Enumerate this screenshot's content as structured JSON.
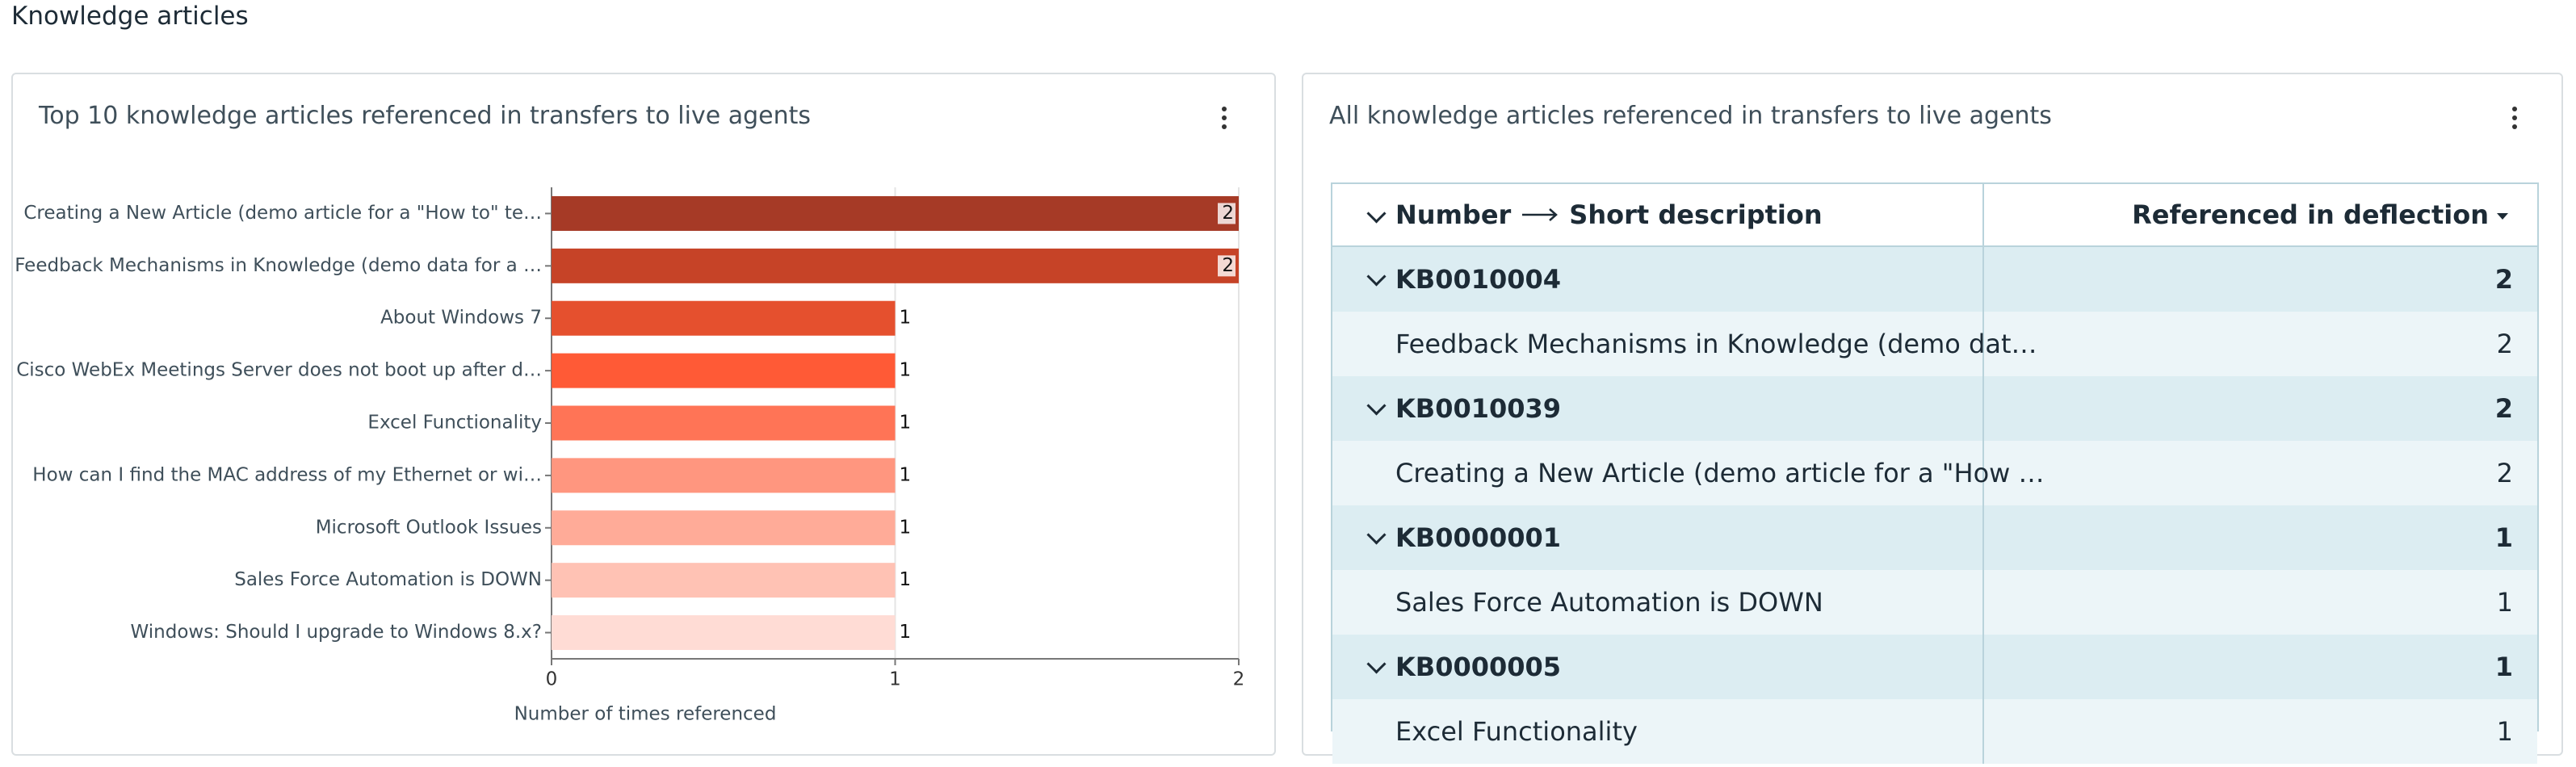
{
  "header": {
    "title": "Knowledge articles"
  },
  "chart_data": {
    "type": "bar",
    "orientation": "horizontal",
    "title": "Top 10 knowledge articles referenced in transfers to live agents",
    "categories": [
      "Creating a New Article (demo article for a \"How to\" te…",
      "Feedback Mechanisms in Knowledge (demo data for a …",
      "About Windows 7",
      "Cisco WebEx Meetings Server does not boot up after d…",
      "Excel Functionality",
      "How can I find the MAC address of my Ethernet or wi…",
      "Microsoft Outlook Issues",
      "Sales Force Automation is DOWN",
      "Windows: Should I upgrade to Windows 8.x?"
    ],
    "values": [
      2,
      2,
      1,
      1,
      1,
      1,
      1,
      1,
      1
    ],
    "colors": [
      "#a63a26",
      "#c64327",
      "#e5502e",
      "#ff5a36",
      "#ff7456",
      "#ff967f",
      "#ffab98",
      "#ffc2b4",
      "#ffdcd5"
    ],
    "xlim": [
      0,
      2
    ],
    "xticks": [
      0,
      1,
      2
    ],
    "grid": true,
    "xlabel": "Number of times referenced"
  },
  "table": {
    "title": "All knowledge articles referenced in transfers to live agents",
    "columns": [
      "Number",
      "Short description",
      "Referenced in deflection"
    ],
    "rows": [
      {
        "number": "KB0010004",
        "total": "2",
        "articles": [
          {
            "description": "Feedback Mechanisms in Knowledge (demo dat…",
            "value": "2"
          }
        ]
      },
      {
        "number": "KB0010039",
        "total": "2",
        "articles": [
          {
            "description": "Creating a New Article (demo article for a \"How …",
            "value": "2"
          }
        ]
      },
      {
        "number": "KB0000001",
        "total": "1",
        "articles": [
          {
            "description": "Sales Force Automation is DOWN",
            "value": "1"
          }
        ]
      },
      {
        "number": "KB0000005",
        "total": "1",
        "articles": [
          {
            "description": "Excel Functionality",
            "value": "1"
          }
        ]
      }
    ]
  }
}
